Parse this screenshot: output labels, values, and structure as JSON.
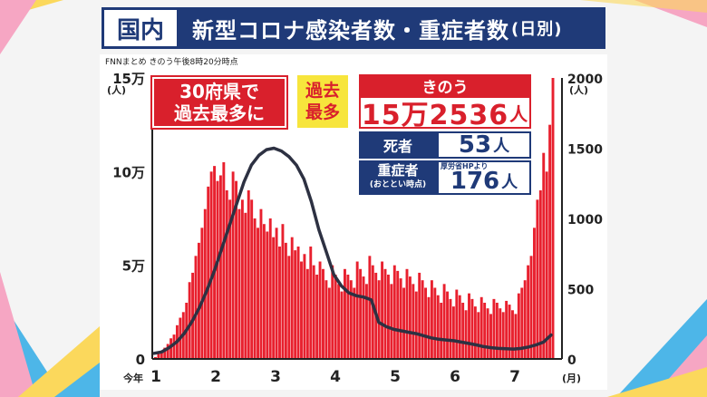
{
  "header": {
    "tag": "国内",
    "title": "新型コロナ感染者数・重症者数",
    "title_suffix": "(日別)"
  },
  "source": "FNNまとめ きのう午後8時20分時点",
  "callouts": {
    "prefectures": [
      "30府県で",
      "過去最多に"
    ],
    "record": [
      "過去",
      "最多"
    ],
    "yesterday_label": "きのう",
    "yesterday_value": "15万2536",
    "unit_people": "人",
    "deaths_label": "死者",
    "deaths_value": "53",
    "severe_label": "重症者",
    "severe_sub": "(おととい時点)",
    "severe_source": "厚労省HPより",
    "severe_value": "176"
  },
  "colors": {
    "bar": "#e8202e",
    "line": "#2d3142",
    "navy": "#1f3a78",
    "red": "#d9202c",
    "yellow": "#f7e53c"
  },
  "chart_data": {
    "type": "bar",
    "x_start_label": "今年",
    "x_unit_label": "(月)",
    "x_tick_labels": [
      "1",
      "2",
      "3",
      "4",
      "5",
      "6",
      "7"
    ],
    "y_left": {
      "label_unit": "(人)",
      "ylim": [
        0,
        150000
      ],
      "tick_labels": [
        "0",
        "5万",
        "10万",
        "15万"
      ]
    },
    "y_right": {
      "label_unit": "(人)",
      "ylim": [
        0,
        2000
      ],
      "tick_labels": [
        "0",
        "500",
        "1000",
        "1500",
        "2000"
      ]
    },
    "series": [
      {
        "kind": "bar",
        "axis": "left",
        "values": [
          1000,
          3000,
          4000,
          6000,
          8000,
          11000,
          13000,
          18000,
          22000,
          25000,
          30000,
          41000,
          46000,
          55000,
          62000,
          70000,
          80000,
          92000,
          100000,
          103000,
          95000,
          98000,
          105000,
          90000,
          85000,
          100000,
          95000,
          80000,
          85000,
          78000,
          90000,
          85000,
          75000,
          70000,
          80000,
          72000,
          68000,
          75000,
          65000,
          70000,
          60000,
          72000,
          62000,
          55000,
          65000,
          58000,
          60000,
          52000,
          56000,
          48000,
          60000,
          50000,
          45000,
          52000,
          48000,
          42000,
          38000,
          50000,
          45000,
          40000,
          36000,
          48000,
          45000,
          42000,
          38000,
          52000,
          48000,
          44000,
          40000,
          55000,
          50000,
          46000,
          42000,
          52000,
          48000,
          45000,
          40000,
          50000,
          47000,
          43000,
          38000,
          48000,
          44000,
          40000,
          36000,
          46000,
          42000,
          38000,
          33000,
          42000,
          38000,
          34000,
          30000,
          40000,
          36000,
          32000,
          28000,
          37000,
          34000,
          30000,
          26000,
          35000,
          32000,
          28000,
          25000,
          33000,
          30000,
          27000,
          24000,
          32000,
          30000,
          27000,
          25000,
          31000,
          29000,
          26000,
          24000,
          35000,
          38000,
          42000,
          50000,
          55000,
          70000,
          85000,
          90000,
          110000,
          100000,
          125000,
          150000
        ]
      },
      {
        "kind": "line",
        "axis": "right",
        "name": "重症者",
        "values": [
          40,
          50,
          80,
          120,
          180,
          260,
          360,
          480,
          620,
          780,
          940,
          1100,
          1260,
          1380,
          1450,
          1490,
          1500,
          1480,
          1440,
          1380,
          1280,
          1120,
          920,
          760,
          600,
          520,
          470,
          450,
          440,
          420,
          260,
          230,
          210,
          200,
          190,
          180,
          165,
          150,
          140,
          135,
          130,
          120,
          110,
          100,
          88,
          80,
          75,
          72,
          70,
          75,
          85,
          100,
          120,
          170
        ]
      }
    ]
  }
}
